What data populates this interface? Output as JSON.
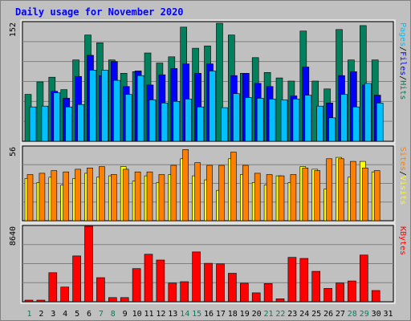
{
  "title": "Daily usage for November 2020",
  "colors": {
    "background": "#C0C0C0",
    "frame": "#FFFFFF",
    "plot": "#C0C0C0",
    "title": "#0000FF",
    "hits": "#00805C",
    "files": "#0000FF",
    "pages": "#00C0FF",
    "visits": "#FFFF00",
    "sites": "#FF8000",
    "kbytes": "#FF0000",
    "weekend_day": "#00805C",
    "weekday": "#000000"
  },
  "chart_data": [
    {
      "type": "bar",
      "name": "hits-files-pages",
      "categories": [
        "1",
        "2",
        "3",
        "4",
        "5",
        "6",
        "7",
        "8",
        "9",
        "10",
        "11",
        "12",
        "13",
        "14",
        "15",
        "16",
        "17",
        "18",
        "19",
        "20",
        "21",
        "22",
        "23",
        "24",
        "25",
        "26",
        "27",
        "28",
        "29",
        "30",
        "31"
      ],
      "y_max_label": "152",
      "ylim": [
        0,
        152
      ],
      "axis_label_parts": [
        "Pages",
        "/",
        "Files",
        "/",
        "Hits"
      ],
      "series": [
        {
          "name": "Hits",
          "color_key": "hits",
          "values": [
            60,
            76,
            82,
            66,
            104,
            136,
            126,
            104,
            87,
            89,
            113,
            100,
            108,
            146,
            119,
            122,
            151,
            136,
            87,
            107,
            88,
            81,
            77,
            141,
            77,
            67,
            143,
            104,
            148,
            104,
            0
          ]
        },
        {
          "name": "Files",
          "color_key": "files",
          "values": [
            0,
            0,
            64,
            55,
            83,
            110,
            84,
            102,
            70,
            90,
            72,
            85,
            93,
            99,
            87,
            99,
            0,
            84,
            87,
            74,
            70,
            0,
            58,
            95,
            0,
            49,
            84,
            89,
            72,
            59,
            0
          ]
        },
        {
          "name": "Pages",
          "color_key": "pages",
          "values": [
            44,
            45,
            62,
            44,
            47,
            91,
            91,
            78,
            60,
            84,
            53,
            49,
            51,
            54,
            44,
            90,
            43,
            61,
            56,
            55,
            54,
            53,
            54,
            59,
            45,
            30,
            60,
            44,
            74,
            49,
            0
          ]
        }
      ]
    },
    {
      "type": "bar",
      "name": "visits-sites",
      "categories": [
        "1",
        "2",
        "3",
        "4",
        "5",
        "6",
        "7",
        "8",
        "9",
        "10",
        "11",
        "12",
        "13",
        "14",
        "15",
        "16",
        "17",
        "18",
        "19",
        "20",
        "21",
        "22",
        "23",
        "24",
        "25",
        "26",
        "27",
        "28",
        "29",
        "30",
        "31"
      ],
      "y_max_label": "56",
      "ylim": [
        0,
        56
      ],
      "axis_label_parts": [
        "Sites",
        "/",
        "Visits"
      ],
      "series": [
        {
          "name": "Visits",
          "color_key": "visits",
          "values": [
            32,
            29,
            33,
            27,
            32,
            36,
            33,
            34,
            41,
            30,
            34,
            29,
            35,
            47,
            34,
            31,
            23,
            47,
            35,
            29,
            27,
            34,
            29,
            41,
            39,
            24,
            48,
            33,
            45,
            37,
            0
          ]
        },
        {
          "name": "Sites",
          "color_key": "sites",
          "values": [
            35,
            36,
            38,
            37,
            39,
            40,
            41,
            35,
            39,
            37,
            37,
            35,
            42,
            54,
            44,
            42,
            42,
            52,
            42,
            36,
            35,
            34,
            35,
            40,
            38,
            47,
            47,
            45,
            40,
            38,
            0
          ]
        }
      ]
    },
    {
      "type": "bar",
      "name": "kbytes",
      "categories": [
        "1",
        "2",
        "3",
        "4",
        "5",
        "6",
        "7",
        "8",
        "9",
        "10",
        "11",
        "12",
        "13",
        "14",
        "15",
        "16",
        "17",
        "18",
        "19",
        "20",
        "21",
        "22",
        "23",
        "24",
        "25",
        "26",
        "27",
        "28",
        "29",
        "30",
        "31"
      ],
      "y_max_label": "8640",
      "ylim": [
        0,
        8640
      ],
      "axis_label_parts": [
        "KBytes"
      ],
      "series": [
        {
          "name": "KBytes",
          "color_key": "kbytes",
          "values": [
            180,
            180,
            3330,
            1680,
            5250,
            8640,
            2760,
            480,
            480,
            3800,
            5440,
            4780,
            2140,
            2300,
            5710,
            4400,
            4340,
            3260,
            2120,
            1020,
            2090,
            340,
            5080,
            4960,
            3480,
            1530,
            2150,
            2380,
            5350,
            1290,
            0
          ]
        }
      ]
    }
  ],
  "day_labels": [
    "1",
    "2",
    "3",
    "4",
    "5",
    "6",
    "7",
    "8",
    "9",
    "10",
    "11",
    "12",
    "13",
    "14",
    "15",
    "16",
    "17",
    "18",
    "19",
    "20",
    "21",
    "22",
    "23",
    "24",
    "25",
    "26",
    "27",
    "28",
    "29",
    "30",
    "31"
  ],
  "weekend_days": [
    1,
    7,
    8,
    14,
    15,
    21,
    22,
    28,
    29
  ]
}
